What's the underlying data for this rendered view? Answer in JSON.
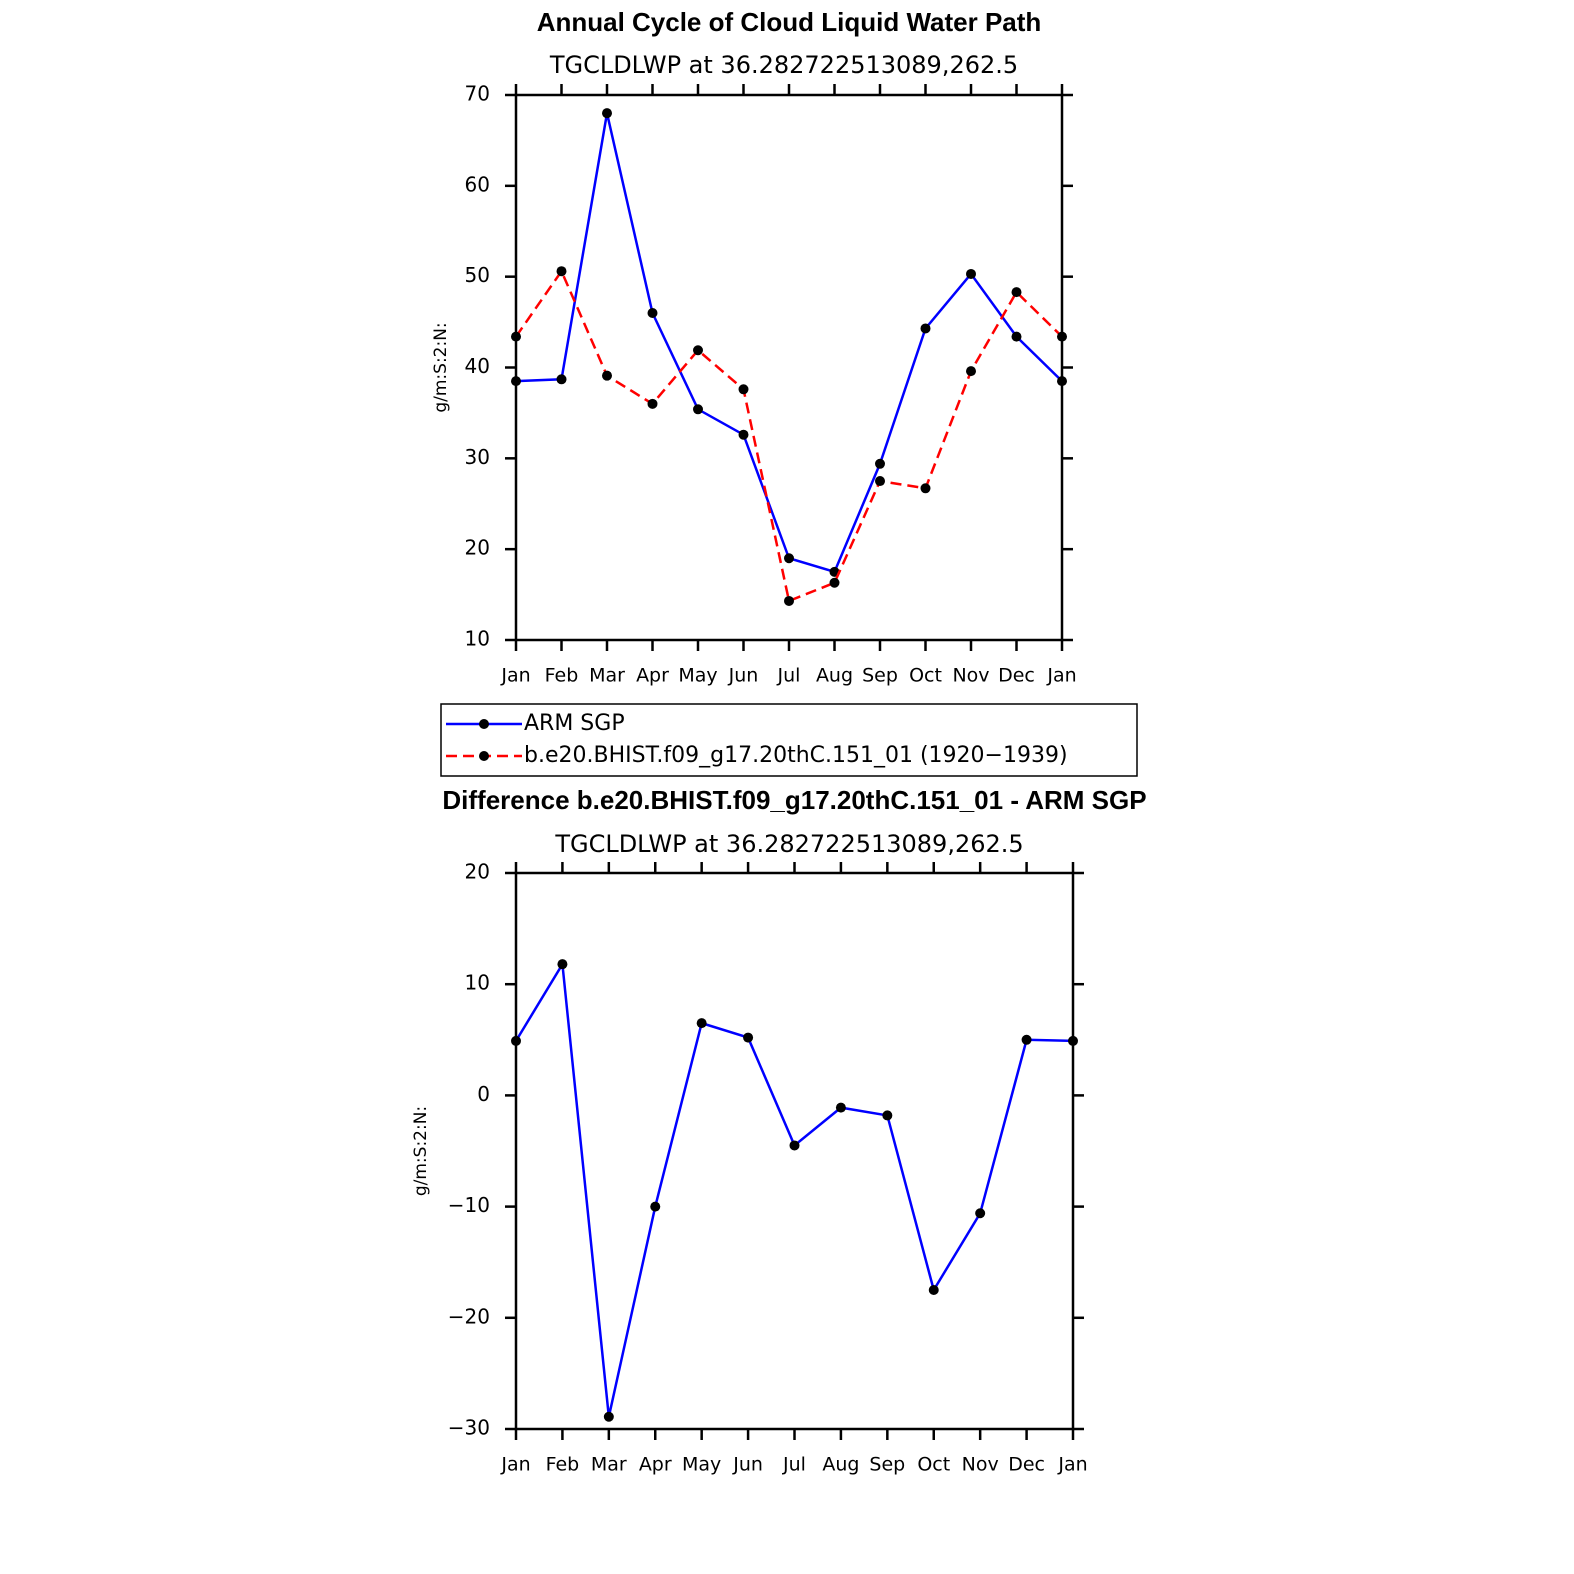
{
  "chart_data": [
    {
      "type": "line",
      "title": "Annual Cycle of Cloud Liquid Water Path",
      "subtitle": "TGCLDLWP  at  36.282722513089,262.5",
      "ylabel": "g/m:S:2:N:",
      "categories": [
        "Jan",
        "Feb",
        "Mar",
        "Apr",
        "May",
        "Jun",
        "Jul",
        "Aug",
        "Sep",
        "Oct",
        "Nov",
        "Dec",
        "Jan"
      ],
      "series": [
        {
          "name": "ARM  SGP",
          "color": "#0000ff",
          "dash": "solid",
          "values": [
            38.5,
            38.7,
            68.0,
            46.0,
            35.4,
            32.6,
            19.0,
            17.5,
            29.4,
            44.3,
            50.3,
            43.4,
            38.5
          ]
        },
        {
          "name": "b.e20.BHIST.f09_g17.20thC.151_01  (1920−1939)",
          "color": "#ff0000",
          "dash": "dashed",
          "values": [
            43.4,
            50.6,
            39.1,
            36.0,
            41.9,
            37.6,
            14.3,
            16.3,
            27.5,
            26.7,
            39.6,
            48.3,
            43.4
          ]
        }
      ],
      "ylim": [
        10,
        70
      ],
      "yticks": [
        10,
        20,
        30,
        40,
        50,
        60,
        70
      ],
      "legend": "bottom"
    },
    {
      "type": "line",
      "title": "Difference b.e20.BHIST.f09_g17.20thC.151_01 - ARM SGP",
      "subtitle": "TGCLDLWP  at  36.282722513089,262.5",
      "ylabel": "g/m:S:2:N:",
      "categories": [
        "Jan",
        "Feb",
        "Mar",
        "Apr",
        "May",
        "Jun",
        "Jul",
        "Aug",
        "Sep",
        "Oct",
        "Nov",
        "Dec",
        "Jan"
      ],
      "series": [
        {
          "color": "#0000ff",
          "dash": "solid",
          "values": [
            4.9,
            11.8,
            -28.9,
            -10.0,
            6.5,
            5.2,
            -4.5,
            -1.1,
            -1.8,
            -17.5,
            -10.6,
            5.0,
            4.9
          ]
        }
      ],
      "ylim": [
        -30,
        20
      ],
      "yticks": [
        {
          "value": -30,
          "label": "−30"
        },
        {
          "value": -20,
          "label": "−20"
        },
        {
          "value": -10,
          "label": "−10"
        },
        0,
        10,
        20
      ]
    }
  ]
}
